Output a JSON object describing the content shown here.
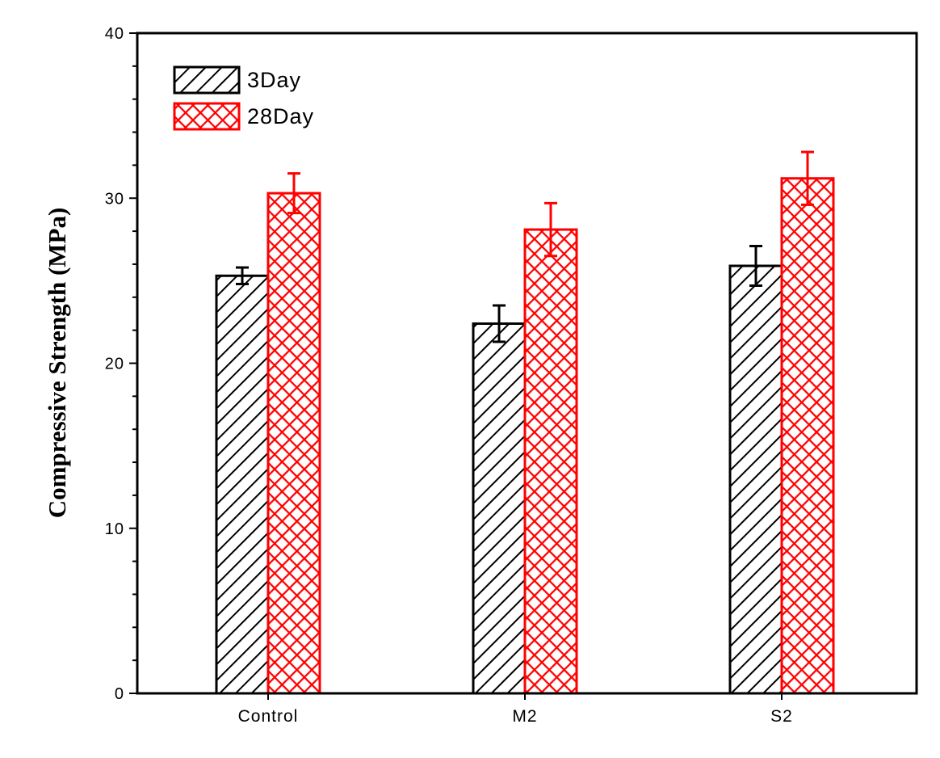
{
  "chart_data": {
    "type": "bar",
    "ylabel": "Compressive Strength (MPa)",
    "xlabel": "",
    "ylim": [
      0,
      40
    ],
    "yticks": [
      0,
      10,
      20,
      30,
      40
    ],
    "categories": [
      "Control",
      "M2",
      "S2"
    ],
    "series": [
      {
        "name": "3Day",
        "values": [
          25.3,
          22.4,
          25.9
        ],
        "errors": [
          0.5,
          1.1,
          1.2
        ],
        "color": "#000000",
        "pattern": "diagonal-hatch"
      },
      {
        "name": "28Day",
        "values": [
          30.3,
          28.1,
          31.2
        ],
        "errors": [
          1.2,
          1.6,
          1.6
        ],
        "color": "#ff0000",
        "pattern": "crosshatch"
      }
    ],
    "legend_position": "top-left",
    "grid": false
  }
}
